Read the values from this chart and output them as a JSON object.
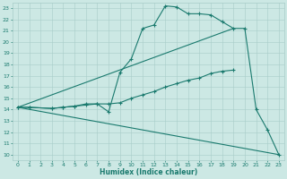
{
  "xlabel": "Humidex (Indice chaleur)",
  "xlim": [
    -0.5,
    23.5
  ],
  "ylim": [
    9.5,
    23.5
  ],
  "xticks": [
    0,
    1,
    2,
    3,
    4,
    5,
    6,
    7,
    8,
    9,
    10,
    11,
    12,
    13,
    14,
    15,
    16,
    17,
    18,
    19,
    20,
    21,
    22,
    23
  ],
  "yticks": [
    10,
    11,
    12,
    13,
    14,
    15,
    16,
    17,
    18,
    19,
    20,
    21,
    22,
    23
  ],
  "bg_color": "#cce8e4",
  "grid_color": "#a8ccc8",
  "line_color": "#1a7a6e",
  "series": [
    {
      "x": [
        0,
        1,
        3,
        4,
        5,
        6,
        7,
        8,
        9,
        10,
        11,
        12,
        13,
        14,
        15,
        16,
        17,
        18,
        19,
        20,
        21,
        22,
        23
      ],
      "y": [
        14.2,
        14.2,
        14.1,
        14.2,
        14.3,
        14.5,
        14.5,
        13.8,
        17.3,
        18.5,
        21.2,
        21.5,
        23.2,
        23.1,
        22.5,
        22.5,
        22.4,
        21.8,
        21.2,
        21.2,
        14.0,
        12.2,
        10.0
      ],
      "has_markers": true
    },
    {
      "x": [
        0,
        19
      ],
      "y": [
        14.2,
        21.2
      ],
      "has_markers": false
    },
    {
      "x": [
        0,
        1,
        3,
        4,
        5,
        6,
        7,
        8,
        9,
        10,
        11,
        12,
        13,
        14,
        15,
        16,
        17,
        18,
        19
      ],
      "y": [
        14.2,
        14.2,
        14.1,
        14.2,
        14.3,
        14.4,
        14.5,
        14.5,
        14.6,
        15.0,
        15.3,
        15.6,
        16.0,
        16.3,
        16.6,
        16.8,
        17.2,
        17.4,
        17.5
      ],
      "has_markers": true
    },
    {
      "x": [
        0,
        23
      ],
      "y": [
        14.2,
        10.0
      ],
      "has_markers": false
    }
  ]
}
